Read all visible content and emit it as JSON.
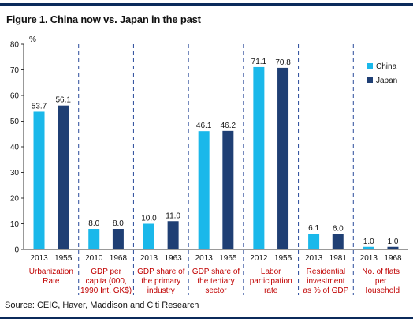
{
  "title": "Figure 1. China now vs. Japan in the past",
  "source": "Source: CEIC, Haver, Maddison and Citi Research",
  "colors": {
    "china": "#1ab8ea",
    "japan": "#1f3f74",
    "category_text": "#c00000",
    "divider": "#2a4b9b",
    "accent_bar": "#0b2a5b"
  },
  "chart_data": {
    "type": "bar",
    "ylabel": "%",
    "ylim": [
      0,
      80
    ],
    "yticks": [
      0,
      10,
      20,
      30,
      40,
      50,
      60,
      70,
      80
    ],
    "legend": {
      "position": "right",
      "items": [
        "China",
        "Japan"
      ]
    },
    "groups": [
      {
        "category": "Urbanization Rate",
        "category_lines": [
          "Urbanization",
          "Rate"
        ],
        "years": [
          "2013",
          "1955"
        ],
        "values": [
          53.7,
          56.1
        ],
        "labels": [
          "53.7",
          "56.1"
        ]
      },
      {
        "category": "GDP per capita (000, 1990 Int. GK$)",
        "category_lines": [
          "GDP per",
          "capita (000,",
          "1990 Int. GK$)"
        ],
        "years": [
          "2010",
          "1968"
        ],
        "values": [
          8.0,
          8.0
        ],
        "labels": [
          "8.0",
          "8.0"
        ]
      },
      {
        "category": "GDP share of the primary industry",
        "category_lines": [
          "GDP share of",
          "the primary",
          "industry"
        ],
        "years": [
          "2013",
          "1963"
        ],
        "values": [
          10.0,
          11.0
        ],
        "labels": [
          "10.0",
          "11.0"
        ]
      },
      {
        "category": "GDP share of the tertiary sector",
        "category_lines": [
          "GDP share of",
          "the tertiary",
          "sector"
        ],
        "years": [
          "2013",
          "1965"
        ],
        "values": [
          46.1,
          46.2
        ],
        "labels": [
          "46.1",
          "46.2"
        ]
      },
      {
        "category": "Labor participation rate",
        "category_lines": [
          "Labor",
          "participation",
          "rate"
        ],
        "years": [
          "2012",
          "1955"
        ],
        "values": [
          71.1,
          70.8
        ],
        "labels": [
          "71.1",
          "70.8"
        ]
      },
      {
        "category": "Residential investment as % of GDP",
        "category_lines": [
          "Residential",
          "investment",
          "as % of GDP"
        ],
        "years": [
          "2013",
          "1981"
        ],
        "values": [
          6.1,
          6.0
        ],
        "labels": [
          "6.1",
          "6.0"
        ]
      },
      {
        "category": "No. of flats per Household",
        "category_lines": [
          "No. of flats",
          "per",
          "Household"
        ],
        "years": [
          "2013",
          "1968"
        ],
        "values": [
          1.0,
          1.0
        ],
        "labels": [
          "1.0",
          "1.0"
        ]
      }
    ]
  }
}
